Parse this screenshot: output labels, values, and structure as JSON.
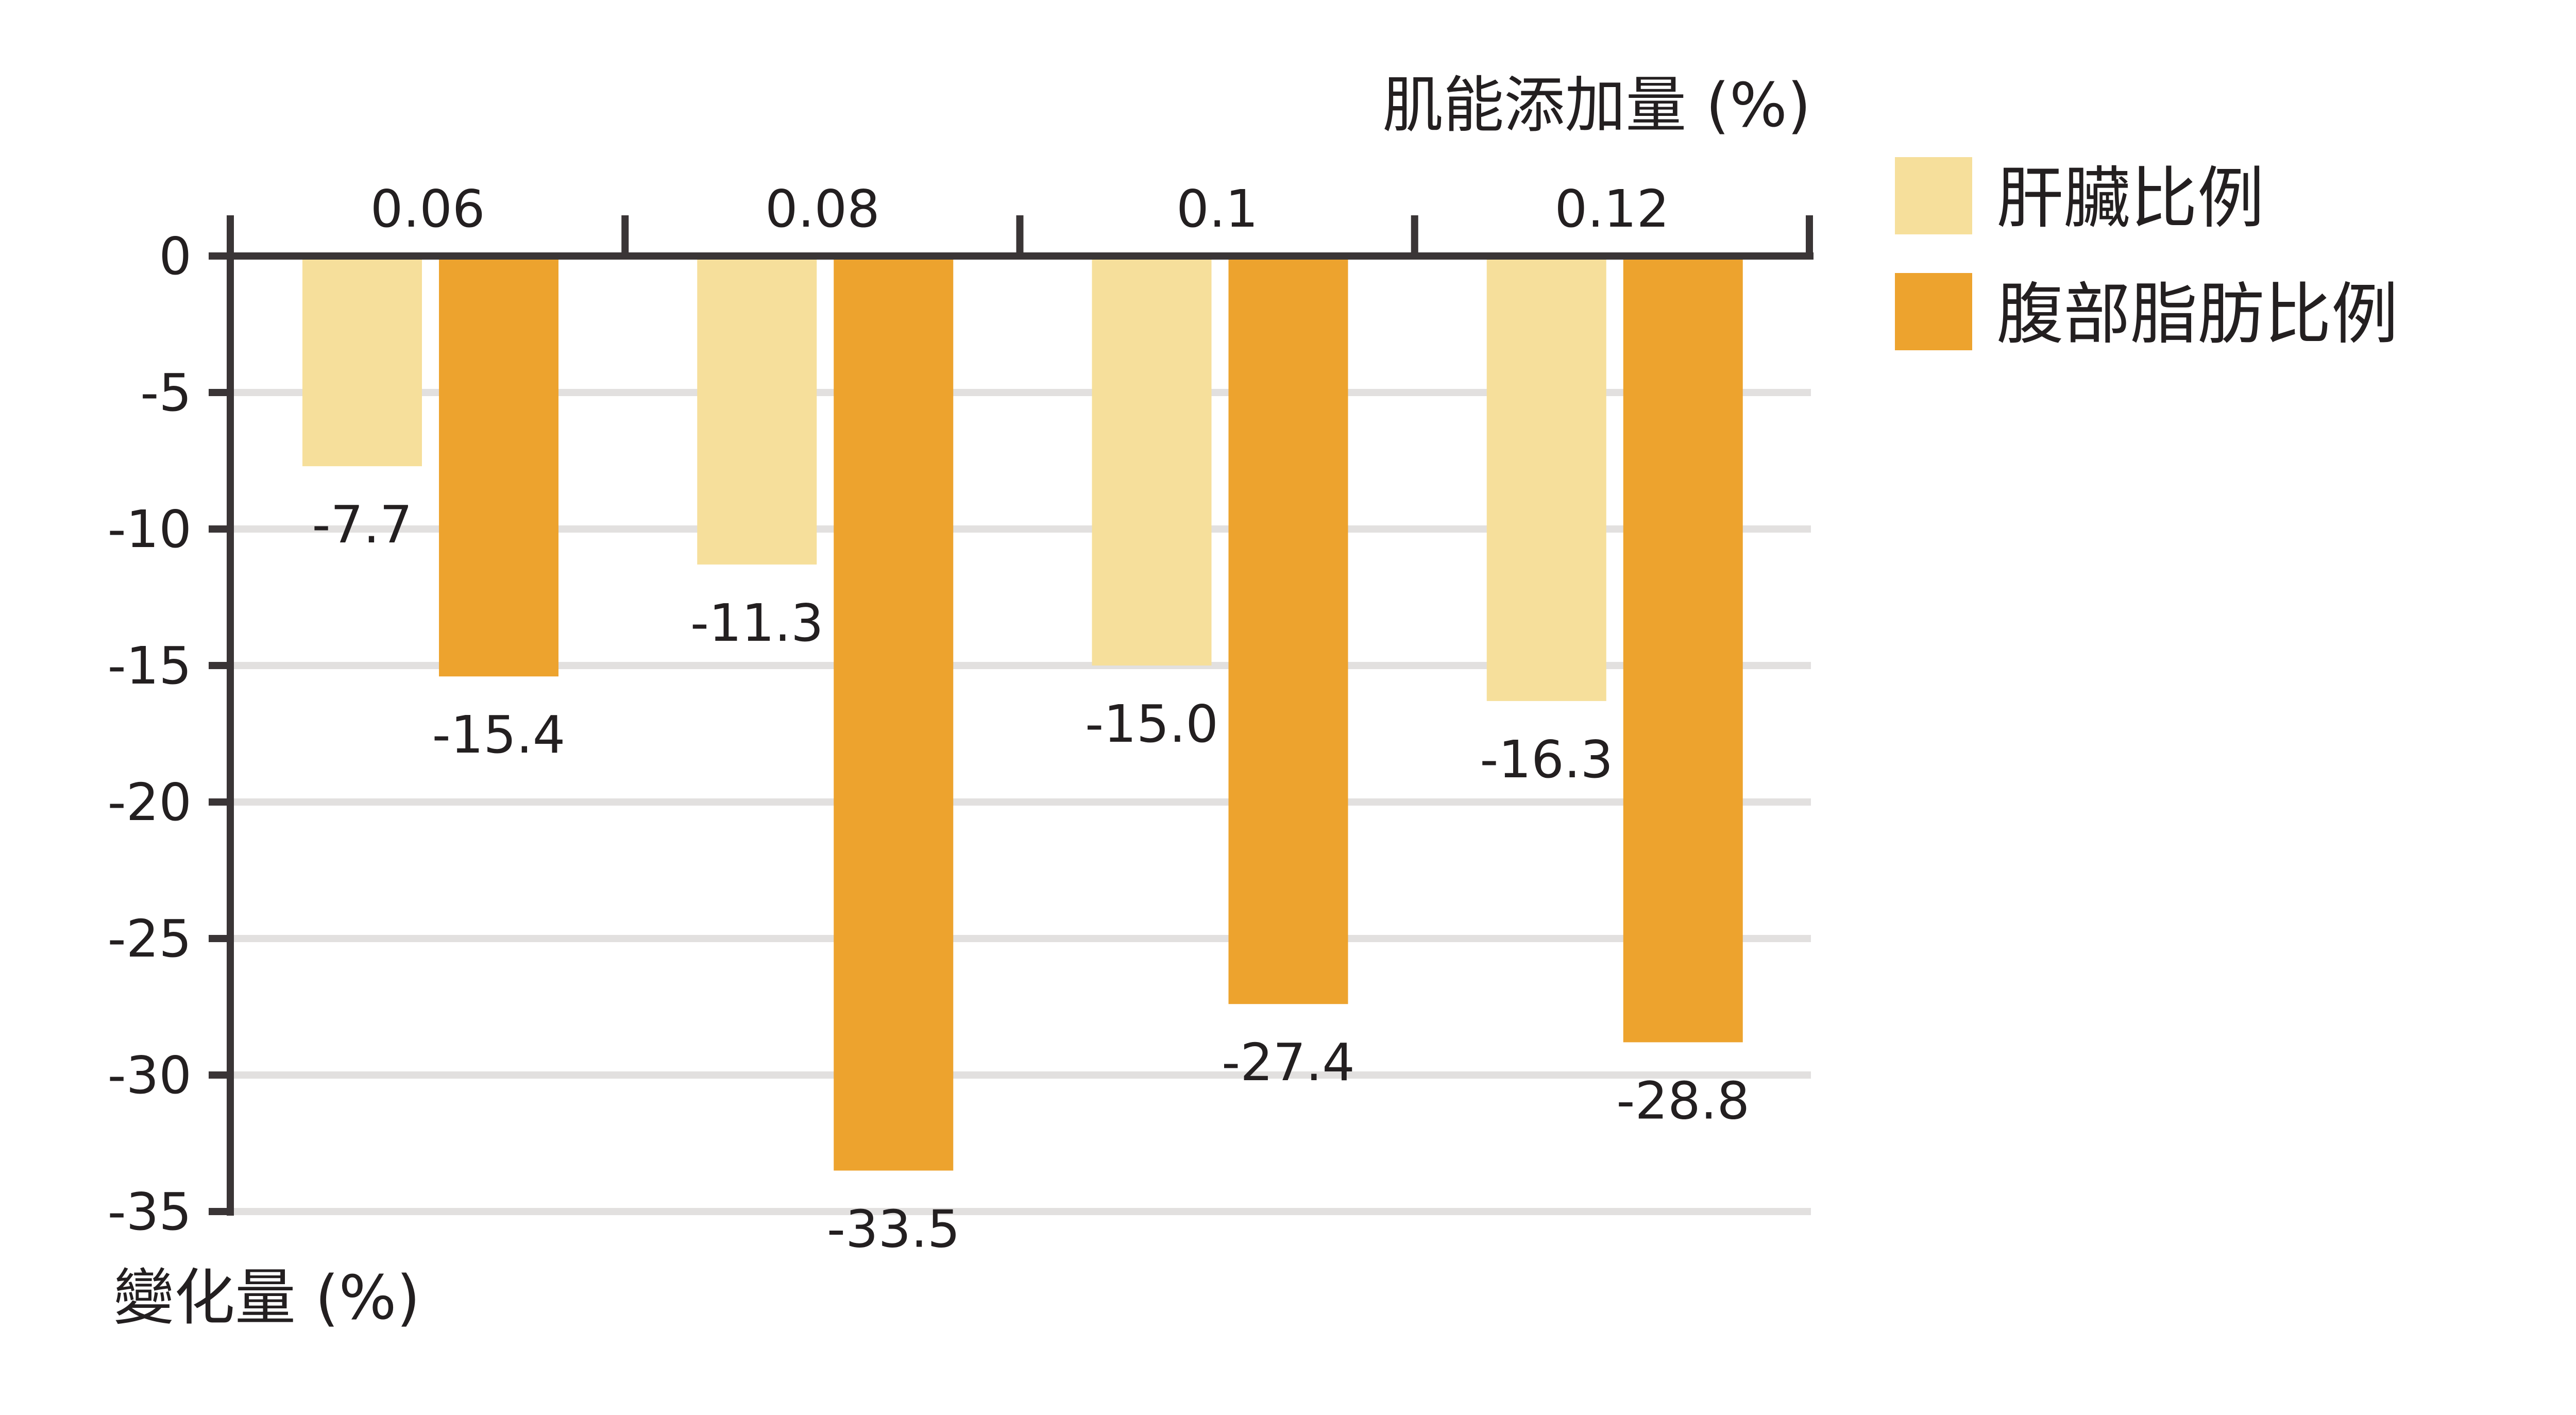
{
  "chart_data": {
    "type": "bar",
    "x_axis_title": "肌能添加量 (%)",
    "y_axis_title": "變化量 (%)",
    "categories": [
      "0.06",
      "0.08",
      "0.1",
      "0.12"
    ],
    "series": [
      {
        "name": "肝臟比例",
        "color": "#f6df9b",
        "values": [
          -7.7,
          -11.3,
          -15.0,
          -16.3
        ],
        "labels": [
          "-7.7",
          "-11.3",
          "-15.0",
          "-16.3"
        ]
      },
      {
        "name": "腹部脂肪比例",
        "color": "#eda32e",
        "values": [
          -15.4,
          -33.5,
          -27.4,
          -28.8
        ],
        "labels": [
          "-15.4",
          "-33.5",
          "-27.4",
          "-28.8"
        ]
      }
    ],
    "ylim": [
      -35,
      0
    ],
    "y_ticks": [
      0,
      -5,
      -10,
      -15,
      -20,
      -25,
      -30,
      -35
    ],
    "y_tick_labels": [
      "0",
      "-5",
      "-10",
      "-15",
      "-20",
      "-25",
      "-30",
      "-35"
    ],
    "grid": true,
    "gridline_color": "#e2e0df",
    "axis_color": "#3a3536",
    "legend_position": "right",
    "x_axis_position": "top"
  }
}
